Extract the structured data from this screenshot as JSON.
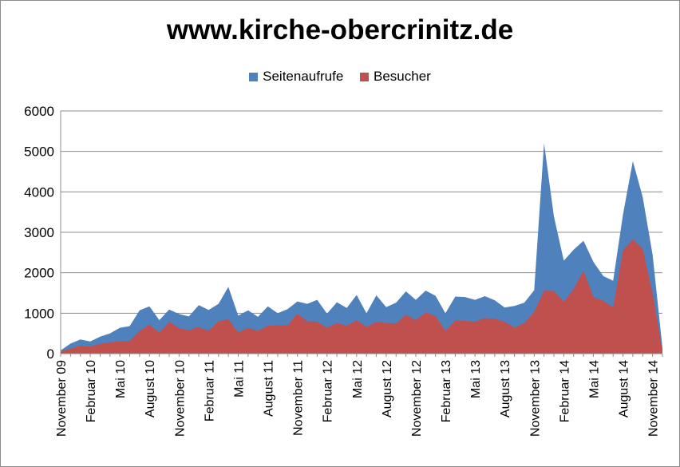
{
  "chart_data": {
    "type": "area",
    "title": "www.kirche-obercrinitz.de",
    "ylim": [
      0,
      6000
    ],
    "yticks": [
      "0",
      "1000",
      "2000",
      "3000",
      "4000",
      "5000",
      "6000"
    ],
    "grid": "horizontal",
    "legend_position": "top",
    "x": [
      "Nov 09",
      "Dez 09",
      "Jan 10",
      "Feb 10",
      "Mär 10",
      "Apr 10",
      "Mai 10",
      "Jun 10",
      "Jul 10",
      "Aug 10",
      "Sep 10",
      "Okt 10",
      "Nov 10",
      "Dez 10",
      "Jan 11",
      "Feb 11",
      "Mär 11",
      "Apr 11",
      "Mai 11",
      "Jun 11",
      "Jul 11",
      "Aug 11",
      "Sep 11",
      "Okt 11",
      "Nov 11",
      "Dez 11",
      "Jan 12",
      "Feb 12",
      "Mär 12",
      "Apr 12",
      "Mai 12",
      "Jun 12",
      "Jul 12",
      "Aug 12",
      "Sep 12",
      "Okt 12",
      "Nov 12",
      "Dez 12",
      "Jan 13",
      "Feb 13",
      "Mär 13",
      "Apr 13",
      "Mai 13",
      "Jun 13",
      "Jul 13",
      "Aug 13",
      "Sep 13",
      "Okt 13",
      "Nov 13",
      "Dez 13",
      "Jan 14",
      "Feb 14",
      "Mär 14",
      "Apr 14",
      "Mai 14",
      "Jun 14",
      "Jul 14",
      "Aug 14",
      "Sep 14",
      "Okt 14",
      "Nov 14",
      "Dez 14"
    ],
    "xtick_labels": [
      {
        "index": 0,
        "label": "November 09"
      },
      {
        "index": 3,
        "label": "Februar 10"
      },
      {
        "index": 6,
        "label": "Mai 10"
      },
      {
        "index": 9,
        "label": "August 10"
      },
      {
        "index": 12,
        "label": "November 10"
      },
      {
        "index": 15,
        "label": "Februar 11"
      },
      {
        "index": 18,
        "label": "Mai 11"
      },
      {
        "index": 21,
        "label": "August 11"
      },
      {
        "index": 24,
        "label": "November 11"
      },
      {
        "index": 27,
        "label": "Februar 12"
      },
      {
        "index": 30,
        "label": "Mai 12"
      },
      {
        "index": 33,
        "label": "August 12"
      },
      {
        "index": 36,
        "label": "November 12"
      },
      {
        "index": 39,
        "label": "Februar 13"
      },
      {
        "index": 42,
        "label": "Mai 13"
      },
      {
        "index": 45,
        "label": "August 13"
      },
      {
        "index": 48,
        "label": "November 13"
      },
      {
        "index": 51,
        "label": "Februar 14"
      },
      {
        "index": 54,
        "label": "Mai 14"
      },
      {
        "index": 57,
        "label": "August 14"
      },
      {
        "index": 60,
        "label": "November 14"
      }
    ],
    "series": [
      {
        "name": "Seitenaufrufe",
        "color": "#4f81bd",
        "values": [
          80,
          250,
          350,
          300,
          420,
          500,
          640,
          680,
          1070,
          1170,
          830,
          1090,
          980,
          920,
          1200,
          1080,
          1230,
          1650,
          940,
          1070,
          910,
          1170,
          1000,
          1100,
          1290,
          1230,
          1330,
          990,
          1270,
          1130,
          1450,
          1000,
          1440,
          1150,
          1260,
          1540,
          1330,
          1560,
          1430,
          1000,
          1410,
          1400,
          1330,
          1420,
          1320,
          1140,
          1180,
          1260,
          1570,
          5200,
          3390,
          2300,
          2570,
          2790,
          2270,
          1920,
          1800,
          3440,
          4760,
          3870,
          2450,
          150
        ]
      },
      {
        "name": "Besucher",
        "color": "#c0504d",
        "values": [
          60,
          120,
          200,
          180,
          240,
          280,
          300,
          320,
          560,
          720,
          520,
          790,
          630,
          580,
          660,
          560,
          800,
          850,
          520,
          640,
          560,
          690,
          700,
          700,
          990,
          800,
          790,
          640,
          760,
          690,
          830,
          660,
          790,
          760,
          750,
          960,
          830,
          1020,
          930,
          560,
          820,
          810,
          790,
          880,
          860,
          790,
          640,
          760,
          1030,
          1560,
          1550,
          1280,
          1600,
          2050,
          1400,
          1310,
          1140,
          2550,
          2830,
          2600,
          1480,
          80
        ]
      }
    ]
  }
}
